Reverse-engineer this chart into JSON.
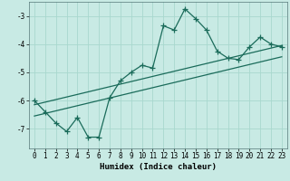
{
  "xlabel": "Humidex (Indice chaleur)",
  "ylabel": "",
  "bg_color": "#c8eae4",
  "grid_color": "#a8d8ce",
  "line_color": "#1a6b5a",
  "spine_color": "#557777",
  "xlim": [
    -0.5,
    23.5
  ],
  "ylim": [
    -7.7,
    -2.5
  ],
  "yticks": [
    -7,
    -6,
    -5,
    -4,
    -3
  ],
  "xticks": [
    0,
    1,
    2,
    3,
    4,
    5,
    6,
    7,
    8,
    9,
    10,
    11,
    12,
    13,
    14,
    15,
    16,
    17,
    18,
    19,
    20,
    21,
    22,
    23
  ],
  "data_x": [
    0,
    1,
    2,
    3,
    4,
    5,
    6,
    7,
    8,
    9,
    10,
    11,
    12,
    13,
    14,
    15,
    16,
    17,
    18,
    19,
    20,
    21,
    22,
    23
  ],
  "data_y": [
    -6.0,
    -6.4,
    -6.8,
    -7.1,
    -6.6,
    -7.3,
    -7.3,
    -5.9,
    -5.3,
    -5.0,
    -4.75,
    -4.85,
    -3.35,
    -3.5,
    -2.75,
    -3.1,
    -3.5,
    -4.25,
    -4.5,
    -4.55,
    -4.1,
    -3.75,
    -4.0,
    -4.1
  ],
  "trend1_x": [
    0,
    23
  ],
  "trend1_y": [
    -6.15,
    -4.05
  ],
  "trend2_x": [
    0,
    23
  ],
  "trend2_y": [
    -6.55,
    -4.45
  ],
  "marker_size": 4,
  "line_width": 0.9,
  "tick_fontsize": 5.5,
  "xlabel_fontsize": 6.5
}
